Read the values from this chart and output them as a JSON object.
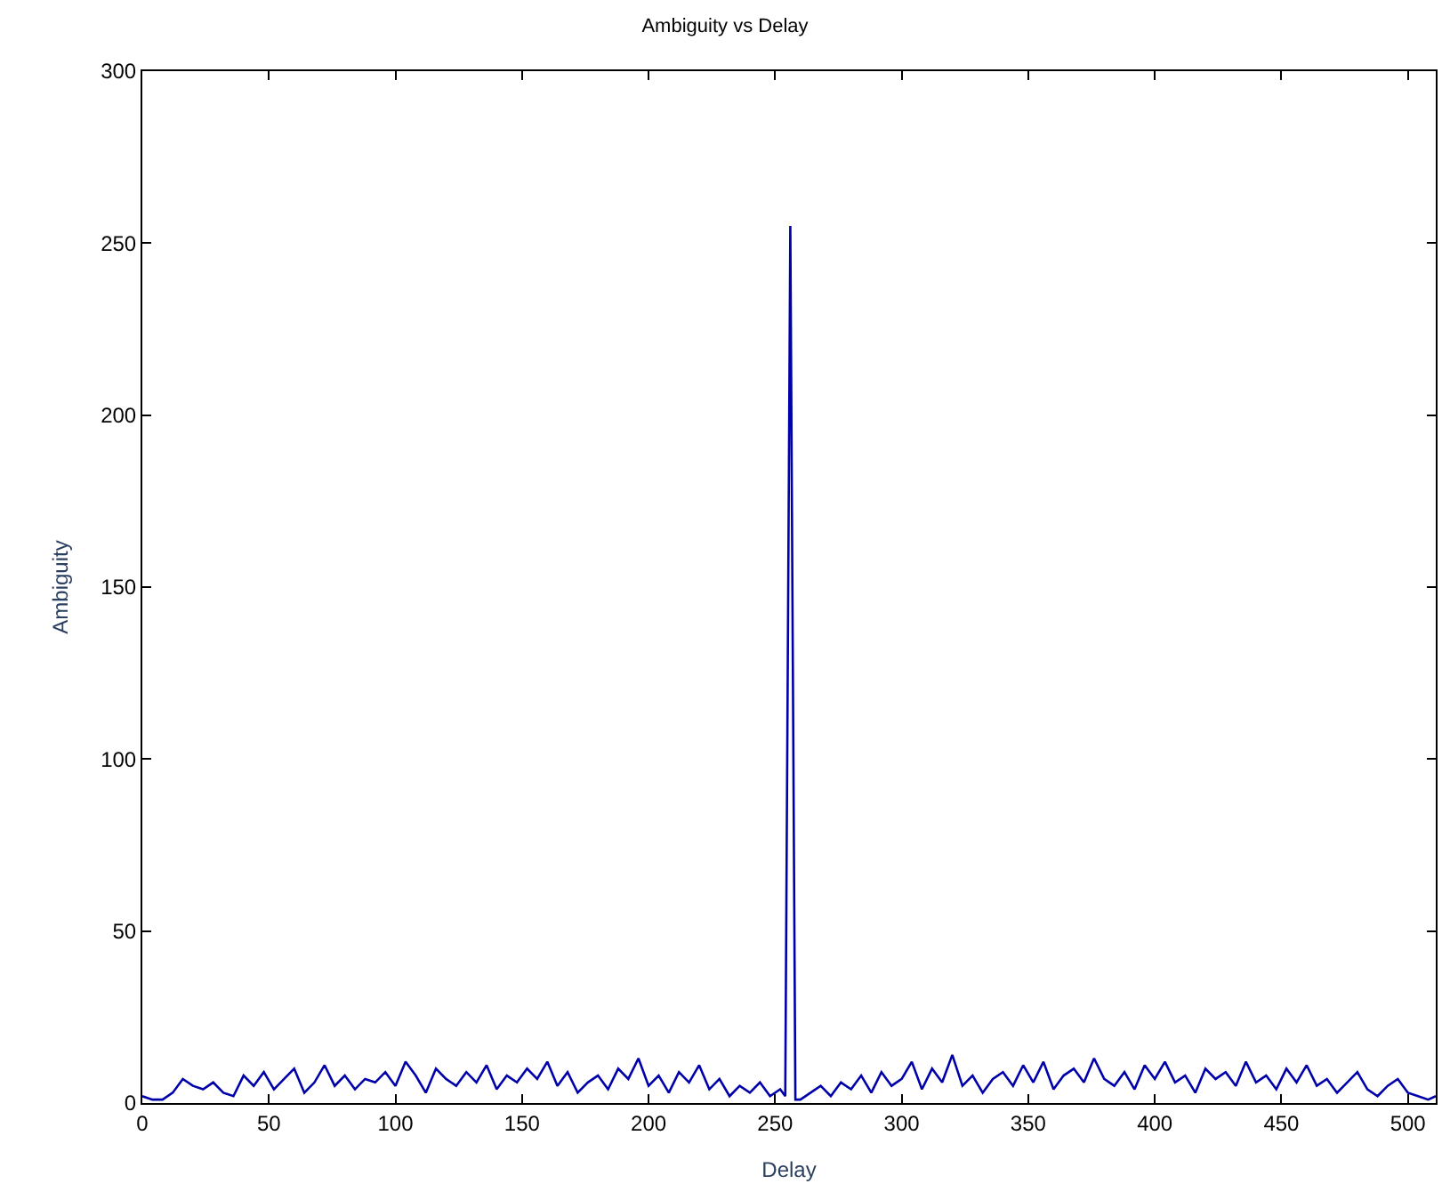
{
  "chart_data": {
    "type": "line",
    "title": "Ambiguity vs Delay",
    "xlabel": "Delay",
    "ylabel": "Ambiguity",
    "x": [
      0,
      4,
      8,
      12,
      16,
      20,
      24,
      28,
      32,
      36,
      40,
      44,
      48,
      52,
      56,
      60,
      64,
      68,
      72,
      76,
      80,
      84,
      88,
      92,
      96,
      100,
      104,
      108,
      112,
      116,
      120,
      124,
      128,
      132,
      136,
      140,
      144,
      148,
      152,
      156,
      160,
      164,
      168,
      172,
      176,
      180,
      184,
      188,
      192,
      196,
      200,
      204,
      208,
      212,
      216,
      220,
      224,
      228,
      232,
      236,
      240,
      244,
      248,
      252,
      254,
      255,
      256,
      257,
      258,
      260,
      264,
      268,
      272,
      276,
      280,
      284,
      288,
      292,
      296,
      300,
      304,
      308,
      312,
      316,
      320,
      324,
      328,
      332,
      336,
      340,
      344,
      348,
      352,
      356,
      360,
      364,
      368,
      372,
      376,
      380,
      384,
      388,
      392,
      396,
      400,
      404,
      408,
      412,
      416,
      420,
      424,
      428,
      432,
      436,
      440,
      444,
      448,
      452,
      456,
      460,
      464,
      468,
      472,
      476,
      480,
      484,
      488,
      492,
      496,
      500,
      504,
      508,
      511
    ],
    "series": [
      {
        "color": "#0000aa",
        "values": [
          2,
          1,
          1,
          3,
          7,
          5,
          4,
          6,
          3,
          2,
          8,
          5,
          9,
          4,
          7,
          10,
          3,
          6,
          11,
          5,
          8,
          4,
          7,
          6,
          9,
          5,
          12,
          8,
          3,
          10,
          7,
          5,
          9,
          6,
          11,
          4,
          8,
          6,
          10,
          7,
          12,
          5,
          9,
          3,
          6,
          8,
          4,
          10,
          7,
          13,
          5,
          8,
          3,
          9,
          6,
          11,
          4,
          7,
          2,
          5,
          3,
          6,
          2,
          4,
          2,
          128,
          255,
          128,
          1,
          1,
          3,
          5,
          2,
          6,
          4,
          8,
          3,
          9,
          5,
          7,
          12,
          4,
          10,
          6,
          14,
          5,
          8,
          3,
          7,
          9,
          5,
          11,
          6,
          12,
          4,
          8,
          10,
          6,
          13,
          7,
          5,
          9,
          4,
          11,
          7,
          12,
          6,
          8,
          3,
          10,
          7,
          9,
          5,
          12,
          6,
          8,
          4,
          10,
          6,
          11,
          5,
          7,
          3,
          6,
          9,
          4,
          2,
          5,
          7,
          3,
          2,
          1,
          2
        ]
      }
    ],
    "xlim": [
      0,
      511
    ],
    "xticks": [
      0,
      50,
      100,
      150,
      200,
      250,
      300,
      350,
      400,
      450,
      500
    ],
    "ylim": [
      0,
      300
    ],
    "yticks": [
      0,
      50,
      100,
      150,
      200,
      250,
      300
    ],
    "grid": false,
    "legend": false,
    "marker": "none",
    "line_style": "solid"
  }
}
